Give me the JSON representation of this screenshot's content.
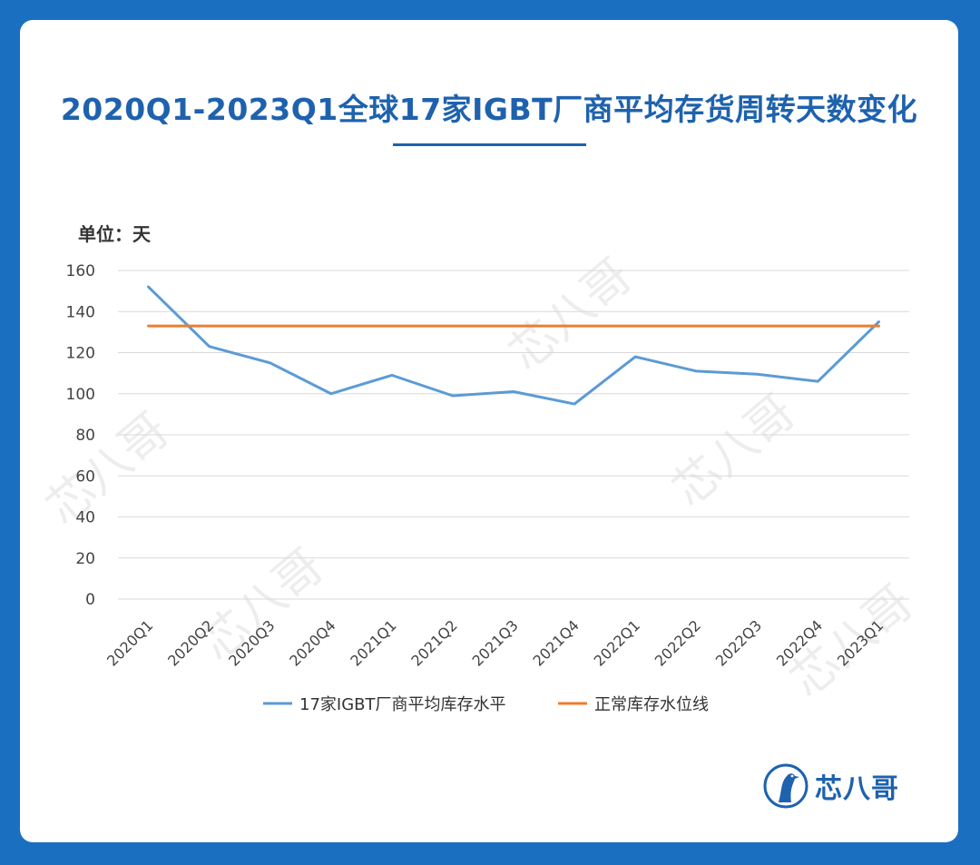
{
  "title": "2020Q1-2023Q1全球17家IGBT厂商平均存货周转天数变化",
  "unit_label": "单位：天",
  "brand": {
    "name": "芯八哥"
  },
  "watermark": "芯八哥",
  "colors": {
    "background": "#1a6fc1",
    "accent": "#1e62ad",
    "series_line": "#5b9bd5",
    "normal_line": "#ed7d31"
  },
  "chart_data": {
    "type": "line",
    "title": "",
    "xlabel": "",
    "ylabel": "单位：天",
    "ylim": [
      0,
      160
    ],
    "yticks": [
      0,
      20,
      40,
      60,
      80,
      100,
      120,
      140,
      160
    ],
    "grid": true,
    "legend_position": "bottom",
    "categories": [
      "2020Q1",
      "2020Q2",
      "2020Q3",
      "2020Q4",
      "2021Q1",
      "2021Q2",
      "2021Q3",
      "2021Q4",
      "2022Q1",
      "2022Q2",
      "2022Q3",
      "2022Q4",
      "2023Q1"
    ],
    "series": [
      {
        "name": "17家IGBT厂商平均库存水平",
        "color": "#5b9bd5",
        "values": [
          152,
          123,
          115,
          100,
          109,
          99,
          101,
          95,
          118,
          111,
          109.5,
          106,
          135
        ]
      },
      {
        "name": "正常库存水位线",
        "color": "#ed7d31",
        "values": [
          133,
          133,
          133,
          133,
          133,
          133,
          133,
          133,
          133,
          133,
          133,
          133,
          133
        ]
      }
    ]
  }
}
